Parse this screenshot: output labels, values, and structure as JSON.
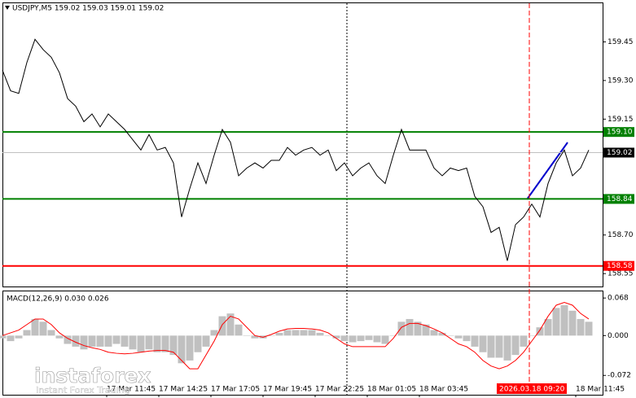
{
  "chart_data": [
    {
      "type": "line",
      "title": "USDJPY,M5  159.02 159.03 159.01 159.02",
      "color": "#000000",
      "values": [
        159.34,
        159.26,
        159.25,
        159.37,
        159.46,
        159.42,
        159.39,
        159.33,
        159.23,
        159.2,
        159.14,
        159.17,
        159.12,
        159.17,
        159.14,
        159.11,
        159.07,
        159.03,
        159.09,
        159.03,
        159.04,
        158.98,
        158.77,
        158.88,
        158.98,
        158.9,
        159.01,
        159.11,
        159.06,
        158.93,
        158.96,
        158.98,
        158.96,
        158.99,
        158.99,
        159.04,
        159.01,
        159.03,
        159.04,
        159.01,
        159.03,
        158.95,
        158.98,
        158.93,
        158.96,
        158.98,
        158.93,
        158.9,
        159.01,
        159.11,
        159.03,
        159.03,
        159.03,
        158.96,
        158.93,
        158.96,
        158.95,
        158.96,
        158.85,
        158.81,
        158.71,
        158.73,
        158.6,
        158.74,
        158.77,
        158.82,
        158.77,
        158.9,
        158.98,
        159.03,
        158.93,
        158.96,
        159.03
      ],
      "ylim": [
        158.5,
        159.6
      ],
      "yticks": [
        159.45,
        {
          "value": 159.3,
          "label": "159.30"
        },
        159.15,
        {
          "value": 158.7,
          "label": "158.70"
        },
        158.55
      ],
      "xticks": [
        {
          "value": 12.8,
          "label": "17 Mar 11:45"
        },
        {
          "value": 19.2,
          "label": "17 Mar 14:25"
        },
        {
          "value": 25.6,
          "label": "17 Mar 17:05"
        },
        {
          "value": 32,
          "label": "17 Mar 19:45"
        },
        {
          "value": 38.4,
          "label": "17 Mar 22:25"
        },
        {
          "value": 44.8,
          "label": "18 Mar 01:05"
        },
        {
          "value": 51.2,
          "label": "18 Mar 03:45"
        },
        {
          "value": 70.4,
          "label": "18 Mar 11:45"
        }
      ],
      "cursor": {
        "value": 64.7,
        "label": "2026.03.18 09:20",
        "color": "#ff0000"
      },
      "levels": [
        {
          "value": 159.1,
          "label": "159.10",
          "color": "#008000"
        },
        {
          "value": 158.84,
          "label": "158.84",
          "color": "#008000"
        },
        {
          "value": 158.58,
          "label": "158.58",
          "color": "#ff0000"
        }
      ],
      "last_price": {
        "value": 159.02,
        "label": "159.02",
        "color": "#000000"
      }
    },
    {
      "type": "macd",
      "title": "MACD(12,26,9) 0.030 0.026",
      "histogram": {
        "color": "#c0c0c0",
        "values": [
          -0.005,
          -0.01,
          -0.005,
          0.01,
          0.03,
          0.025,
          0.01,
          -0.005,
          -0.015,
          -0.02,
          -0.025,
          -0.02,
          -0.02,
          -0.02,
          -0.015,
          -0.02,
          -0.025,
          -0.03,
          -0.025,
          -0.03,
          -0.03,
          -0.035,
          -0.05,
          -0.045,
          -0.03,
          -0.02,
          0.01,
          0.035,
          0.04,
          0.02,
          0.0,
          -0.005,
          -0.005,
          0.0,
          0.005,
          0.01,
          0.01,
          0.01,
          0.01,
          0.005,
          0.0,
          -0.005,
          -0.01,
          -0.012,
          -0.01,
          -0.008,
          -0.012,
          -0.015,
          0.0,
          0.025,
          0.03,
          0.025,
          0.02,
          0.01,
          0.005,
          0.0,
          -0.005,
          -0.01,
          -0.02,
          -0.03,
          -0.04,
          -0.04,
          -0.045,
          -0.035,
          -0.02,
          0.0,
          0.015,
          0.03,
          0.05,
          0.055,
          0.045,
          0.03,
          0.025
        ]
      },
      "signal": {
        "color": "#ff0000",
        "values": [
          0.0,
          0.005,
          0.01,
          0.02,
          0.03,
          0.03,
          0.02,
          0.005,
          -0.005,
          -0.012,
          -0.018,
          -0.022,
          -0.025,
          -0.03,
          -0.032,
          -0.033,
          -0.032,
          -0.03,
          -0.028,
          -0.027,
          -0.027,
          -0.03,
          -0.045,
          -0.06,
          -0.06,
          -0.035,
          -0.01,
          0.02,
          0.035,
          0.03,
          0.015,
          0.0,
          -0.003,
          0.002,
          0.008,
          0.012,
          0.013,
          0.013,
          0.012,
          0.01,
          0.005,
          -0.005,
          -0.015,
          -0.02,
          -0.02,
          -0.02,
          -0.02,
          -0.02,
          -0.005,
          0.015,
          0.022,
          0.022,
          0.018,
          0.012,
          0.005,
          -0.005,
          -0.015,
          -0.02,
          -0.03,
          -0.045,
          -0.055,
          -0.06,
          -0.055,
          -0.045,
          -0.03,
          -0.01,
          0.01,
          0.035,
          0.055,
          0.06,
          0.055,
          0.04,
          0.03
        ]
      },
      "ylim": [
        -0.107,
        0.08
      ],
      "yticks": [
        0.068,
        {
          "value": 0,
          "label": "0.000"
        },
        -0.072
      ]
    }
  ],
  "logo": {
    "name": "instaforex",
    "tagline": "Instant Forex Trading"
  }
}
